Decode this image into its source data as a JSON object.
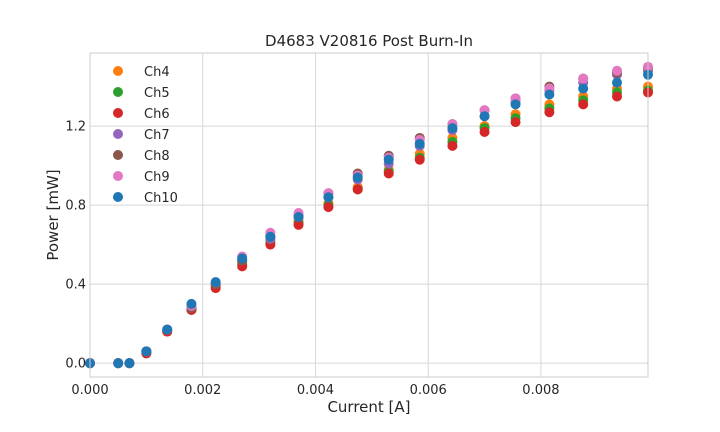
{
  "chart_data": {
    "type": "scatter",
    "title": "D4683 V20816 Post Burn-In",
    "xlabel": "Current [A]",
    "ylabel": "Power [mW]",
    "xlim": [
      0.0,
      0.0099
    ],
    "ylim": [
      -0.07,
      1.57
    ],
    "x_ticks": [
      0.0,
      0.002,
      0.004,
      0.006,
      0.008
    ],
    "x_tick_labels": [
      "0.000",
      "0.002",
      "0.004",
      "0.006",
      "0.008"
    ],
    "y_ticks": [
      0.0,
      0.4,
      0.8,
      1.2
    ],
    "y_tick_labels": [
      "0.0",
      "0.4",
      "0.8",
      "1.2"
    ],
    "grid": true,
    "legend_position": "top-left",
    "x": [
      0.0,
      0.0005,
      0.0007,
      0.001,
      0.00137,
      0.0018,
      0.00223,
      0.0027,
      0.0032,
      0.0037,
      0.00423,
      0.00475,
      0.0053,
      0.00585,
      0.00643,
      0.007,
      0.00755,
      0.00815,
      0.00875,
      0.00935,
      0.0099
    ],
    "series": [
      {
        "name": "Ch4",
        "color": "#ff7f0e",
        "values": [
          0.0,
          0.0,
          0.0,
          0.05,
          0.16,
          0.27,
          0.39,
          0.51,
          0.62,
          0.72,
          0.81,
          0.89,
          0.98,
          1.06,
          1.14,
          1.2,
          1.26,
          1.31,
          1.35,
          1.39,
          1.4
        ]
      },
      {
        "name": "Ch5",
        "color": "#2ca02c",
        "values": [
          0.0,
          0.0,
          0.0,
          0.05,
          0.16,
          0.27,
          0.39,
          0.5,
          0.61,
          0.71,
          0.8,
          0.88,
          0.97,
          1.04,
          1.12,
          1.19,
          1.24,
          1.29,
          1.33,
          1.37,
          1.38
        ]
      },
      {
        "name": "Ch6",
        "color": "#d62728",
        "values": [
          0.0,
          0.0,
          0.0,
          0.05,
          0.16,
          0.27,
          0.38,
          0.49,
          0.6,
          0.7,
          0.79,
          0.88,
          0.96,
          1.03,
          1.1,
          1.17,
          1.22,
          1.27,
          1.31,
          1.35,
          1.37
        ]
      },
      {
        "name": "Ch7",
        "color": "#9467bd",
        "values": [
          0.0,
          0.0,
          0.0,
          0.06,
          0.17,
          0.28,
          0.4,
          0.52,
          0.63,
          0.74,
          0.84,
          0.93,
          1.01,
          1.1,
          1.18,
          1.25,
          1.32,
          1.38,
          1.42,
          1.46,
          1.48
        ]
      },
      {
        "name": "Ch8",
        "color": "#8c564b",
        "values": [
          0.0,
          0.0,
          0.0,
          0.06,
          0.17,
          0.28,
          0.4,
          0.52,
          0.64,
          0.75,
          0.86,
          0.96,
          1.05,
          1.14,
          1.21,
          1.28,
          1.34,
          1.4,
          1.44,
          1.47,
          1.49
        ]
      },
      {
        "name": "Ch9",
        "color": "#e377c2",
        "values": [
          0.0,
          0.0,
          0.0,
          0.06,
          0.17,
          0.29,
          0.41,
          0.54,
          0.66,
          0.76,
          0.86,
          0.95,
          1.04,
          1.13,
          1.21,
          1.28,
          1.34,
          1.39,
          1.44,
          1.48,
          1.5
        ]
      },
      {
        "name": "Ch10",
        "color": "#1f77b4",
        "values": [
          0.0,
          0.0,
          0.0,
          0.06,
          0.17,
          0.3,
          0.41,
          0.53,
          0.64,
          0.74,
          0.84,
          0.94,
          1.03,
          1.11,
          1.19,
          1.25,
          1.31,
          1.36,
          1.39,
          1.42,
          1.46
        ]
      }
    ]
  }
}
